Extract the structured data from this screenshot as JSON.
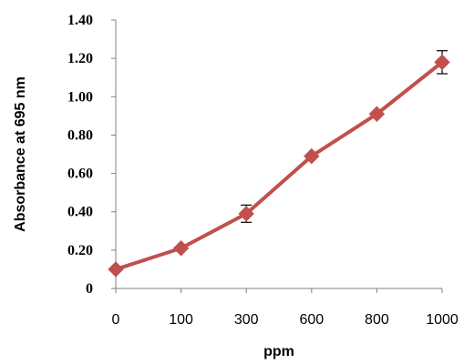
{
  "chart_data": {
    "type": "line",
    "categories": [
      "0",
      "100",
      "300",
      "600",
      "800",
      "1000"
    ],
    "series": [
      {
        "values": [
          0.1,
          0.21,
          0.39,
          0.69,
          0.91,
          1.18
        ],
        "errors": [
          0.0,
          0.0,
          0.045,
          0.0,
          0.0,
          0.06
        ],
        "color": "#c0504d"
      }
    ],
    "xlabel": "ppm",
    "ylabel": "Absorbance at 695 nm",
    "ylim": [
      0,
      1.4
    ],
    "yticks": [
      "0",
      "0.20",
      "0.40",
      "0.60",
      "0.80",
      "1.00",
      "1.20",
      "1.40"
    ],
    "grid": false,
    "legend": "none"
  }
}
